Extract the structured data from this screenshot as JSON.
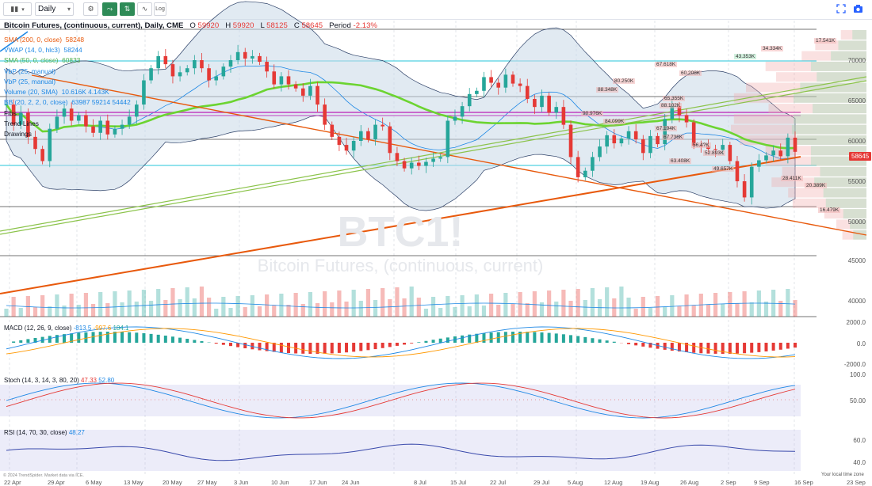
{
  "toolbar": {
    "interval": "Daily",
    "log_label": "Log"
  },
  "header": {
    "title": "Bitcoin Futures, (continuous, current), Daily, CME",
    "o_label": "O",
    "o_value": "59920",
    "h_label": "H",
    "h_value": "59920",
    "l_label": "L",
    "l_value": "58125",
    "c_label": "C",
    "c_value": "58645",
    "period_label": "Period",
    "period_value": "-2.13%"
  },
  "legend": {
    "sma200": "SMA (200, 0, close)",
    "sma200_value": "58248",
    "vwap": "VWAP (14, 0, hlc3)",
    "vwap_value": "58244",
    "sma50": "SMA (50, 0, close)",
    "sma50_value": "60833",
    "vbp1": "VbP (25, manual)",
    "vbp2": "VbP (25, manual)",
    "volume": "Volume (20, SMA)",
    "volume_values": "10.616K  4.143K",
    "bb": "BB (20, 2, 2, 0, close)",
    "bb_values": "63987  59214  54442",
    "fibs": "Fibs",
    "trend_lines": "Trend Lines",
    "drawings": "Drawings"
  },
  "watermark": {
    "symbol": "BTC1!",
    "name": "Bitcoin Futures, (continuous, current)"
  },
  "price_axis": [
    "70000",
    "65000",
    "60000",
    "55000",
    "50000",
    "45000",
    "40000"
  ],
  "last_price": "58645",
  "macd": {
    "title": "MACD (12, 26, 9, close)",
    "values": [
      "-813.5",
      "-997.6",
      "184.1"
    ],
    "axis": [
      "2000.0",
      "0.0",
      "-2000.0"
    ]
  },
  "stoch": {
    "title": "Stoch (14, 3, 14, 3, 80, 20)",
    "values": [
      "47.33",
      "52.80"
    ],
    "axis": [
      "100.0",
      "50.00"
    ]
  },
  "rsi": {
    "title": "RSI (14, 70, 30, close)",
    "value": "48.27",
    "axis": [
      "60.0",
      "40.0"
    ]
  },
  "dates": [
    "22 Apr",
    "29 Apr",
    "6 May",
    "13 May",
    "20 May",
    "27 May",
    "3 Jun",
    "10 Jun",
    "17 Jun",
    "24 Jun",
    "8 Jul",
    "15 Jul",
    "22 Jul",
    "29 Jul",
    "5 Aug",
    "12 Aug",
    "19 Aug",
    "26 Aug",
    "2 Sep",
    "9 Sep",
    "16 Sep",
    "23 Sep"
  ],
  "volume_profile": [
    "17.541K",
    "34.334K",
    "43.353K",
    "67.618K",
    "60.208K",
    "80.250K",
    "88.348K",
    "65.355K",
    "88.102K",
    "90.976K",
    "84.099K",
    "67.194K",
    "67.736K",
    "56.4?K",
    "63.408K",
    "52.893K",
    "49.657K",
    "28.411K",
    "20.389K",
    "16.479K"
  ],
  "footer": {
    "copyright": "© 2024 TrendSpider. Market data via ICE.",
    "local_time": "Your local time zone"
  },
  "colors": {
    "up": "#26a69a",
    "down": "#e53935",
    "sma200": "#e8590c",
    "sma50": "#6cd431",
    "vwap": "#1e88e5",
    "bb_fill": "#c9d8e8",
    "fib_magenta": "#c040c0"
  }
}
